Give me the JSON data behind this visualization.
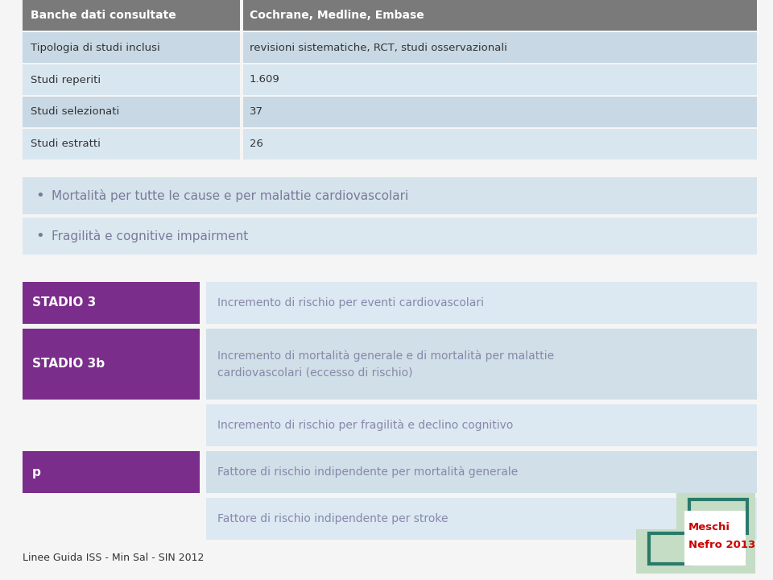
{
  "bg_color": "#f5f5f5",
  "table_header_bg": "#7a7a7a",
  "table_header_text_color": "#ffffff",
  "table_row_bg1": "#c8d8e4",
  "table_row_bg2": "#d8e6ef",
  "table_header_row": [
    "Banche dati consultate",
    "Cochrane, Medline, Embase"
  ],
  "table_rows": [
    [
      "Tipologia di studi inclusi",
      "revisioni sistematiche, RCT, studi osservazionali"
    ],
    [
      "Studi reperiti",
      "1.609"
    ],
    [
      "Studi selezionati",
      "37"
    ],
    [
      "Studi estratti",
      "26"
    ]
  ],
  "bullet_bg1": "#d5e3ec",
  "bullet_bg2": "#dce8f0",
  "bullet_text_color": "#7a7a9a",
  "bullet_rows": [
    "Mortalità per tutte le cause e per malattie cardiovascolari",
    "Fragilità e cognitive impairment"
  ],
  "stadio_bg": "#7b2d8b",
  "stadio_text_color": "#ffffff",
  "info_bg1": "#dce8f2",
  "info_bg2": "#d0dfe8",
  "info_text_color": "#8888aa",
  "stadio_rows": [
    {
      "label": "STADIO 3",
      "text": "Incremento di rischio per eventi cardiovascolari",
      "multiline": false,
      "has_label": true
    },
    {
      "label": "STADIO 3b",
      "text": "Incremento di mortalità generale e di mortalità per malattie\ncardiovascolari (eccesso di rischio)",
      "multiline": true,
      "has_label": true
    },
    {
      "label": "",
      "text": "Incremento di rischio per fragilità e declino cognitivo",
      "multiline": false,
      "has_label": false
    },
    {
      "label": "p",
      "text": "Fattore di rischio indipendente per mortalità generale",
      "multiline": false,
      "has_label": true
    },
    {
      "label": "",
      "text": "Fattore di rischio indipendente per stroke",
      "multiline": false,
      "has_label": false
    }
  ],
  "footer_text": "Linee Guida ISS - Min Sal - SIN 2012",
  "footer_color": "#333333",
  "logo_text1": "Meschi",
  "logo_text2": "Nefro 2013",
  "logo_text_color": "#cc0000",
  "logo_green_light": "#c5dcc5",
  "logo_green_dark": "#2a7a6a"
}
